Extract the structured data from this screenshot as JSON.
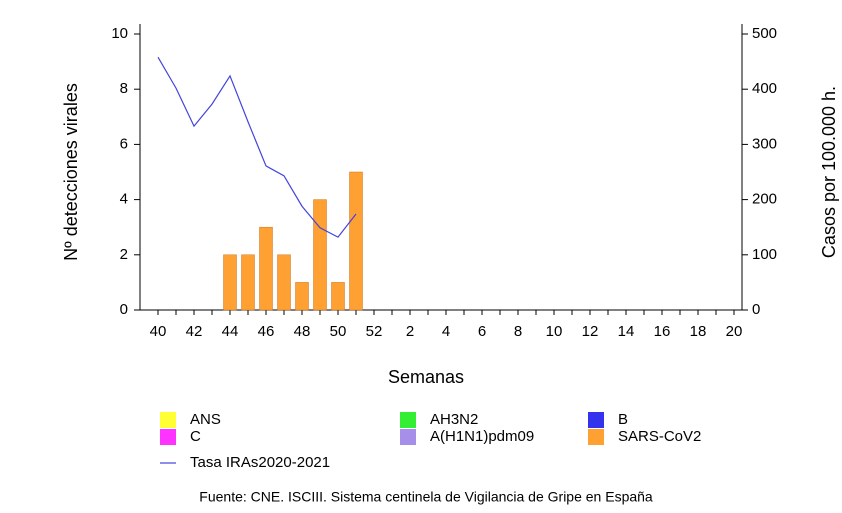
{
  "chart_data": {
    "type": "bar",
    "categories": [
      "40",
      null,
      "42",
      null,
      "44",
      null,
      "46",
      null,
      "48",
      null,
      "50",
      null,
      "52",
      null,
      "2",
      null,
      "4",
      null,
      "6",
      null,
      "8",
      null,
      "10",
      null,
      "12",
      null,
      "14",
      null,
      "16",
      null,
      "18",
      null,
      "20"
    ],
    "x_label": "Semanas",
    "y_label": "Nº detecciones virales",
    "y2_label": "Casos por 100.000 h.",
    "ylim": [
      0,
      10
    ],
    "yticks": [
      0,
      2,
      4,
      6,
      8,
      10
    ],
    "y2lim": [
      0,
      500
    ],
    "y2ticks": [
      0,
      100,
      200,
      300,
      400,
      500
    ],
    "series": [
      {
        "name": "ANS",
        "color": "#ffff33",
        "values": [
          0,
          0,
          0,
          0,
          0,
          0,
          0,
          0,
          0,
          0,
          0,
          0,
          null,
          null,
          null,
          null,
          null,
          null,
          null,
          null,
          null,
          null,
          null,
          null,
          null,
          null,
          null,
          null,
          null,
          null,
          null,
          null,
          null
        ]
      },
      {
        "name": "AH3N2",
        "color": "#33ee33",
        "values": [
          0,
          0,
          0,
          0,
          0,
          0,
          0,
          0,
          0,
          0,
          0,
          0,
          null,
          null,
          null,
          null,
          null,
          null,
          null,
          null,
          null,
          null,
          null,
          null,
          null,
          null,
          null,
          null,
          null,
          null,
          null,
          null,
          null
        ]
      },
      {
        "name": "B",
        "color": "#3333ee",
        "values": [
          0,
          0,
          0,
          0,
          0,
          0,
          0,
          0,
          0,
          0,
          0,
          0,
          null,
          null,
          null,
          null,
          null,
          null,
          null,
          null,
          null,
          null,
          null,
          null,
          null,
          null,
          null,
          null,
          null,
          null,
          null,
          null,
          null
        ]
      },
      {
        "name": "C",
        "color": "#ff33ff",
        "values": [
          0,
          0,
          0,
          0,
          0,
          0,
          0,
          0,
          0,
          0,
          0,
          0,
          null,
          null,
          null,
          null,
          null,
          null,
          null,
          null,
          null,
          null,
          null,
          null,
          null,
          null,
          null,
          null,
          null,
          null,
          null,
          null,
          null
        ]
      },
      {
        "name": "A(H1N1)pdm09",
        "color": "#a58fe8",
        "values": [
          0,
          0,
          0,
          0,
          0,
          0,
          0,
          0,
          0,
          0,
          0,
          0,
          null,
          null,
          null,
          null,
          null,
          null,
          null,
          null,
          null,
          null,
          null,
          null,
          null,
          null,
          null,
          null,
          null,
          null,
          null,
          null,
          null
        ]
      },
      {
        "name": "SARS-CoV2",
        "color": "#ffa033",
        "values": [
          0,
          0,
          0,
          0,
          2,
          2,
          3,
          2,
          1,
          4,
          1,
          5,
          null,
          null,
          null,
          null,
          null,
          null,
          null,
          null,
          null,
          null,
          null,
          null,
          null,
          null,
          null,
          null,
          null,
          null,
          null,
          null,
          null
        ]
      },
      {
        "name": "Tasa IRAs2020-2021",
        "color": "#4444dd",
        "type": "line",
        "axis": "y2",
        "values": [
          458,
          402,
          333,
          373,
          424,
          341,
          261,
          243,
          188,
          149,
          132,
          174,
          null,
          null,
          null,
          null,
          null,
          null,
          null,
          null,
          null,
          null,
          null,
          null,
          null,
          null,
          null,
          null,
          null,
          null,
          null,
          null,
          null
        ]
      }
    ],
    "source": "Fuente: CNE. ISCIII. Sistema centinela de Vigilancia de Gripe en España"
  }
}
